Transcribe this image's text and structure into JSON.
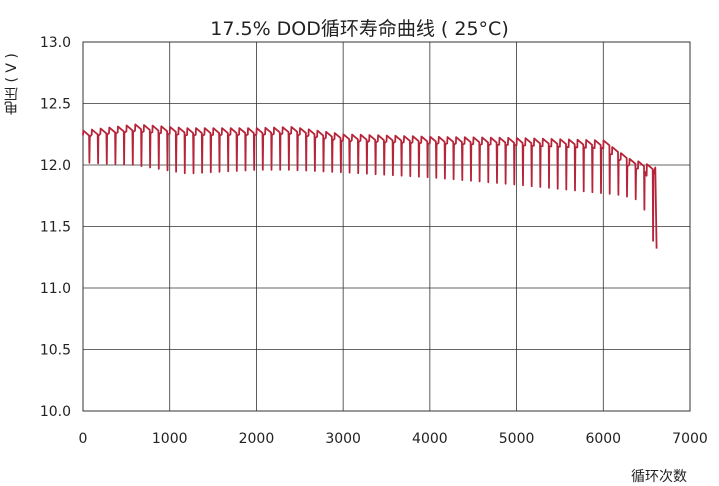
{
  "chart_data": {
    "type": "line",
    "title": "17.5% DOD循环寿命曲线 ( 25°C)",
    "xlabel": "循环次数",
    "ylabel": "电压 ( V )",
    "xlim": [
      0,
      7000
    ],
    "ylim": [
      10.0,
      13.0
    ],
    "x_ticks": [
      "0",
      "1000",
      "2000",
      "3000",
      "4000",
      "5000",
      "6000",
      "7000"
    ],
    "y_ticks": [
      "10.0",
      "10.5",
      "11.0",
      "11.5",
      "12.0",
      "12.5",
      "13.0"
    ],
    "grid": true,
    "series_color": "#b5253a",
    "series": [
      {
        "x": [
          0,
          600,
          1200,
          2000,
          2400,
          3000,
          4000,
          5000,
          6000,
          6150,
          6300,
          6450,
          6600
        ],
        "upper": [
          12.28,
          12.33,
          12.3,
          12.3,
          12.31,
          12.25,
          12.23,
          12.22,
          12.2,
          12.12,
          12.05,
          12.02,
          11.98
        ],
        "lower": [
          12.02,
          12.0,
          11.93,
          11.96,
          11.96,
          11.94,
          11.9,
          11.84,
          11.77,
          11.76,
          11.74,
          11.7,
          11.32
        ]
      }
    ]
  }
}
